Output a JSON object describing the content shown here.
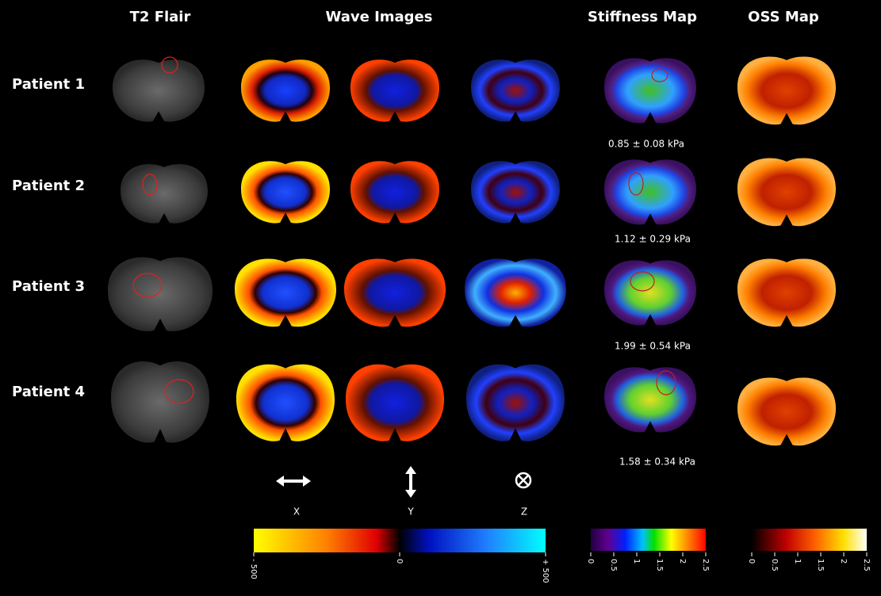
{
  "header": {
    "columns": [
      "T2 Flair",
      "Wave Images",
      "Stiffness Map",
      "OSS Map"
    ]
  },
  "patients": [
    {
      "label": "Patient 1",
      "stiffness": "0.85 ± 0.08 kPa"
    },
    {
      "label": "Patient 2",
      "stiffness": "1.12 ± 0.29 kPa"
    },
    {
      "label": "Patient 3",
      "stiffness": "1.99 ± 0.54 kPa"
    },
    {
      "label": "Patient 4",
      "stiffness": "1.58 ± 0.34 kPa"
    }
  ],
  "wave_directions": [
    "X",
    "Y",
    "Z"
  ],
  "colorbars": {
    "wave": [
      "- 500",
      "0",
      "+ 500"
    ],
    "stiffness": [
      "0",
      "0.5",
      "1",
      "1.5",
      "2",
      "2.5"
    ],
    "oss": [
      "0",
      "0.5",
      "1",
      "1.5",
      "2",
      "2.5"
    ]
  }
}
